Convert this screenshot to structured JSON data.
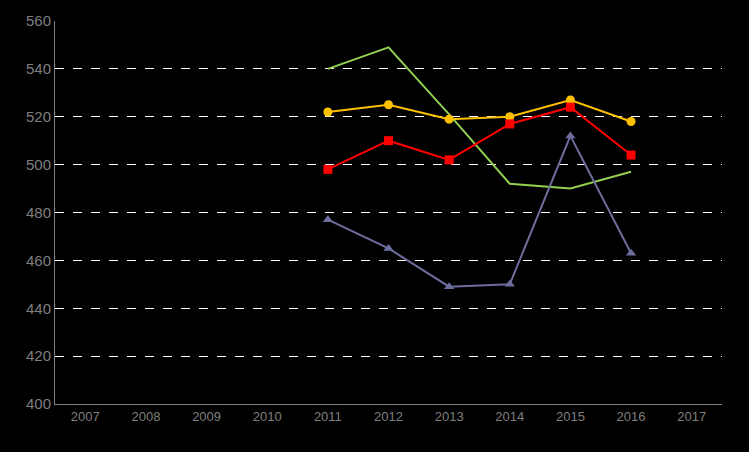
{
  "chart_data": {
    "type": "line",
    "categories": [
      "2007",
      "2008",
      "2009",
      "2010",
      "2011",
      "2012",
      "2013",
      "2014",
      "2015",
      "2016",
      "2017"
    ],
    "series": [
      {
        "color": "#92D050",
        "marker": "none",
        "line_style": "solid",
        "values": [
          null,
          null,
          null,
          null,
          540,
          549,
          521,
          492,
          490,
          497,
          null
        ]
      },
      {
        "color": "#FFC000",
        "marker": "circle",
        "line_style": "solid",
        "values": [
          null,
          null,
          null,
          null,
          522,
          525,
          519,
          520,
          527,
          518,
          null
        ]
      },
      {
        "color": "#FF0000",
        "marker": "square",
        "line_style": "solid",
        "values": [
          null,
          null,
          null,
          null,
          498,
          510,
          502,
          517,
          524,
          504,
          null
        ]
      },
      {
        "color": "#6E6E9E",
        "marker": "triangle-up",
        "line_style": "solid",
        "values": [
          null,
          null,
          null,
          null,
          477,
          465,
          449,
          450,
          512,
          463,
          null
        ]
      }
    ],
    "ylim": [
      400,
      560
    ],
    "yticks": [
      400,
      420,
      440,
      460,
      480,
      500,
      520,
      540,
      560
    ],
    "grid": true
  }
}
